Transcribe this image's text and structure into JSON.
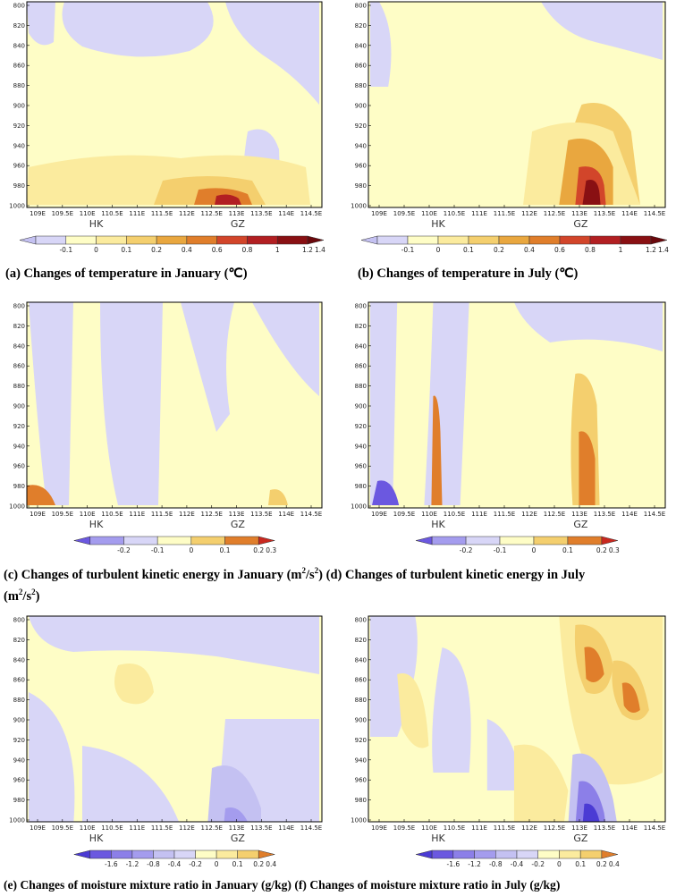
{
  "panels": [
    {
      "id": "a",
      "caption": "(a) Changes of temperature in January (℃)",
      "x_ticks": [
        "109E",
        "109.5E",
        "110E",
        "110.5E",
        "111E",
        "111.5E",
        "112E",
        "112.5E",
        "113E",
        "113.5E",
        "114E",
        "114.5E"
      ],
      "y_ticks": [
        "800",
        "820",
        "840",
        "860",
        "880",
        "900",
        "920",
        "940",
        "960",
        "980",
        "1000"
      ],
      "cities": [
        "HK",
        "GZ"
      ],
      "colorbar": {
        "labels": [
          "-0.1",
          "0",
          "0.1",
          "0.2",
          "0.4",
          "0.6",
          "0.8",
          "1",
          "1.2",
          "1.4"
        ],
        "colors": [
          "#c4c1f2",
          "#d8d6f7",
          "#fefdc6",
          "#fbeb9e",
          "#f4cf6e",
          "#e9a73f",
          "#e07e2b",
          "#d2452a",
          "#b21f22",
          "#891013",
          "#6a080c"
        ]
      },
      "background": "#fefdc6"
    },
    {
      "id": "b",
      "caption": "(b) Changes of temperature in July (℃)",
      "x_ticks": [
        "109E",
        "109.5E",
        "110E",
        "110.5E",
        "111E",
        "111.5E",
        "112E",
        "112.5E",
        "113E",
        "113.5E",
        "114E",
        "114.5E"
      ],
      "y_ticks": [
        "800",
        "820",
        "840",
        "860",
        "880",
        "900",
        "920",
        "940",
        "960",
        "980",
        "1000"
      ],
      "cities": [
        "HK",
        "GZ"
      ],
      "colorbar": {
        "labels": [
          "-0.1",
          "0",
          "0.1",
          "0.2",
          "0.4",
          "0.6",
          "0.8",
          "1",
          "1.2",
          "1.4"
        ],
        "colors": [
          "#c4c1f2",
          "#d8d6f7",
          "#fefdc6",
          "#fbeb9e",
          "#f4cf6e",
          "#e9a73f",
          "#e07e2b",
          "#d2452a",
          "#b21f22",
          "#891013",
          "#6a080c"
        ]
      },
      "background": "#fefdc6"
    },
    {
      "id": "c",
      "caption_pre": "(c) Changes of turbulent kinetic energy in January (m",
      "caption_mid": "/s",
      "caption_post": ") (d) Changes of turbulent kinetic energy in July",
      "caption_line2_pre": "(m",
      "caption_line2_mid": "/s",
      "caption_line2_post": ")",
      "sup": "2",
      "x_ticks": [
        "109E",
        "109.5E",
        "110E",
        "110.5E",
        "111E",
        "111.5E",
        "112E",
        "112.5E",
        "113E",
        "113.5E",
        "114E",
        "114.5E"
      ],
      "y_ticks": [
        "800",
        "820",
        "840",
        "860",
        "880",
        "900",
        "920",
        "940",
        "960",
        "980",
        "1000"
      ],
      "cities": [
        "HK",
        "GZ"
      ],
      "colorbar": {
        "labels": [
          "-0.2",
          "-0.1",
          "0",
          "0.1",
          "0.2",
          "0.3"
        ],
        "colors": [
          "#6b58e0",
          "#a49cee",
          "#d8d6f7",
          "#fefdc6",
          "#f4cf6e",
          "#e07e2b",
          "#c9281f"
        ]
      },
      "background": "#fefdc6"
    },
    {
      "id": "d",
      "x_ticks": [
        "109E",
        "109.5E",
        "110E",
        "110.5E",
        "111E",
        "111.5E",
        "112E",
        "112.5E",
        "113E",
        "113.5E",
        "114E",
        "114.5E"
      ],
      "y_ticks": [
        "800",
        "820",
        "840",
        "860",
        "880",
        "900",
        "920",
        "940",
        "960",
        "980",
        "1000"
      ],
      "cities": [
        "HK",
        "GZ"
      ],
      "colorbar": {
        "labels": [
          "-0.2",
          "-0.1",
          "0",
          "0.1",
          "0.2",
          "0.3"
        ],
        "colors": [
          "#6b58e0",
          "#a49cee",
          "#d8d6f7",
          "#fefdc6",
          "#f4cf6e",
          "#e07e2b",
          "#c9281f"
        ]
      },
      "background": "#fefdc6"
    },
    {
      "id": "e",
      "caption": "(e) Changes of moisture mixture ratio in January (g/kg) (f) Changes of moisture mixture ratio in July (g/kg)",
      "x_ticks": [
        "109E",
        "109.5E",
        "110E",
        "110.5E",
        "111E",
        "111.5E",
        "112E",
        "112.5E",
        "113E",
        "113.5E",
        "114E",
        "114.5E"
      ],
      "y_ticks": [
        "800",
        "820",
        "840",
        "860",
        "880",
        "900",
        "920",
        "940",
        "960",
        "980",
        "1000"
      ],
      "cities": [
        "HK",
        "GZ"
      ],
      "colorbar": {
        "labels": [
          "-1.6",
          "-1.2",
          "-0.8",
          "-0.4",
          "-0.2",
          "0",
          "0.1",
          "0.2",
          "0.4"
        ],
        "colors": [
          "#4b3bd4",
          "#6b58e0",
          "#8c7fe8",
          "#a49cee",
          "#c4c1f2",
          "#d8d6f7",
          "#fefdc6",
          "#fbeb9e",
          "#f4cf6e",
          "#e07e2b"
        ]
      },
      "background": "#fefdc6"
    },
    {
      "id": "f",
      "x_ticks": [
        "109E",
        "109.5E",
        "110E",
        "110.5E",
        "111E",
        "111.5E",
        "112E",
        "112.5E",
        "113E",
        "113.5E",
        "114E",
        "114.5E"
      ],
      "y_ticks": [
        "800",
        "820",
        "840",
        "860",
        "880",
        "900",
        "920",
        "940",
        "960",
        "980",
        "1000"
      ],
      "cities": [
        "HK",
        "GZ"
      ],
      "colorbar": {
        "labels": [
          "-1.6",
          "-1.2",
          "-0.8",
          "-0.4",
          "-0.2",
          "0",
          "0.1",
          "0.2",
          "0.4"
        ],
        "colors": [
          "#4b3bd4",
          "#6b58e0",
          "#8c7fe8",
          "#a49cee",
          "#c4c1f2",
          "#d8d6f7",
          "#fefdc6",
          "#fbeb9e",
          "#f4cf6e",
          "#e07e2b"
        ]
      },
      "background": "#fefdc6"
    }
  ]
}
